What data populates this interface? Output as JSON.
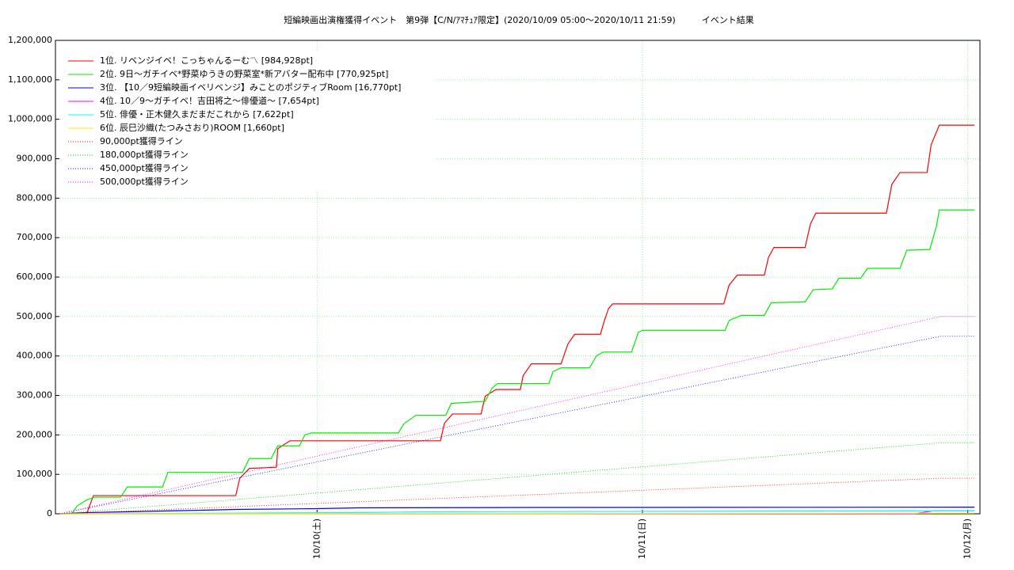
{
  "chart_data": {
    "type": "line",
    "title": "短編映画出演権獲得イベント　第9弾【C/N/ｱﾏﾁｭｱ限定】(2020/10/09 05:00〜2020/10/11 21:59)　　　イベント結果",
    "xlim": [
      -0.3,
      67.9
    ],
    "xticks": [
      {
        "value": 19,
        "label": "10/10(土)"
      },
      {
        "value": 43,
        "label": "10/11(日)"
      },
      {
        "value": 67,
        "label": "10/12(月)"
      }
    ],
    "ylim": [
      0,
      1200000
    ],
    "yticks": [
      0,
      {
        "value": 100000,
        "label": "100,000"
      },
      {
        "value": 200000,
        "label": "200,000"
      },
      {
        "value": 300000,
        "label": "300,000"
      },
      {
        "value": 400000,
        "label": "400,000"
      },
      {
        "value": 500000,
        "label": "500,000"
      },
      {
        "value": 600000,
        "label": "600,000"
      },
      {
        "value": 700000,
        "label": "700,000"
      },
      {
        "value": 800000,
        "label": "800,000"
      },
      {
        "value": 900000,
        "label": "900,000"
      },
      {
        "value": 1000000,
        "label": "1,000,000"
      },
      {
        "value": 1100000,
        "label": "1,100,000"
      },
      {
        "value": 1200000,
        "label": "1,200,000"
      }
    ],
    "grid": true,
    "legend": "upper left",
    "series": [
      {
        "name": "1位. リベンジイベ！こっちゃんるーむ〽 [984,928pt]",
        "color": "#ff0000",
        "line_style": "solid",
        "x": [
          2.0,
          2.5,
          13.0,
          13.3,
          14.0,
          16.0,
          16.1,
          17.0,
          28.1,
          28.4,
          29.0,
          31.1,
          31.4,
          32.2,
          34.0,
          34.2,
          34.8,
          37.0,
          37.5,
          38.0,
          39.9,
          40.2,
          40.5,
          40.8,
          49.0,
          49.4,
          50.0,
          52.0,
          52.3,
          52.7,
          55.0,
          55.4,
          55.8,
          61.0,
          61.4,
          62.0,
          64.0,
          64.3,
          64.9,
          67.5
        ],
        "values": [
          0,
          46000,
          46000,
          90000,
          115000,
          118000,
          165000,
          185000,
          185000,
          230000,
          253000,
          253000,
          298000,
          315000,
          315000,
          350000,
          380000,
          380000,
          430000,
          455000,
          455000,
          490000,
          520000,
          532000,
          532000,
          580000,
          605000,
          605000,
          650000,
          675000,
          675000,
          735000,
          762000,
          762000,
          835000,
          865000,
          865000,
          935000,
          985000,
          985000
        ]
      },
      {
        "name": "2位. 9日〜ガチイベ*野菜ゆうきの野菜室*新アバター配布中 [770,925pt]",
        "color": "#00ee00",
        "line_style": "solid",
        "x": [
          0.9,
          1.3,
          2.0,
          2.6,
          4.5,
          5.0,
          7.6,
          8.0,
          13.5,
          14.0,
          15.6,
          16.1,
          17.7,
          18.1,
          18.6,
          25.0,
          25.4,
          26.3,
          28.5,
          28.9,
          31.4,
          31.9,
          32.3,
          36.1,
          36.4,
          37.0,
          39.1,
          39.6,
          40.1,
          42.2,
          42.7,
          43.0,
          49.1,
          49.4,
          50.3,
          52.0,
          52.5,
          55.0,
          55.6,
          57.0,
          57.5,
          59.1,
          59.6,
          62.0,
          62.5,
          64.2,
          64.7,
          64.9,
          67.5
        ],
        "values": [
          0,
          20000,
          35000,
          42000,
          42000,
          68000,
          68000,
          105000,
          105000,
          140000,
          140000,
          172000,
          172000,
          200000,
          205000,
          205000,
          228000,
          250000,
          250000,
          280000,
          285000,
          318000,
          330000,
          330000,
          360000,
          370000,
          370000,
          400000,
          410000,
          410000,
          460000,
          465000,
          465000,
          490000,
          503000,
          503000,
          535000,
          537000,
          568000,
          570000,
          597000,
          597000,
          622000,
          622000,
          668000,
          670000,
          730000,
          770000,
          770000
        ]
      },
      {
        "name": "3位. 【10／9短編映画イベリベンジ】みことのポジティブRoom [16,770pt]",
        "color": "#0000ff",
        "line_style": "solid",
        "x": [
          0,
          2,
          5,
          9,
          13,
          19,
          22,
          35,
          67.5
        ],
        "values": [
          0,
          3000,
          5000,
          8000,
          11000,
          13000,
          15000,
          16000,
          16770
        ]
      },
      {
        "name": "4位. 10／9〜ガチイベ！吉田将之〜俳優道〜 [7,654pt]",
        "color": "#ff00ff",
        "line_style": "solid",
        "x": [
          0,
          63,
          64.5,
          67.5
        ],
        "values": [
          0,
          0,
          7654,
          7654
        ]
      },
      {
        "name": "5位. 俳優・正木健久まだまだこれから [7,622pt]",
        "color": "#00ffff",
        "line_style": "solid",
        "x": [
          0,
          22,
          27,
          50,
          67.5
        ],
        "values": [
          0,
          3000,
          5000,
          6500,
          7622
        ]
      },
      {
        "name": "6位. 辰巳沙織(たつみさおり)ROOM [1,660pt]",
        "color": "#ffee00",
        "line_style": "solid",
        "x": [
          0,
          37,
          67.5
        ],
        "values": [
          0,
          500,
          1660
        ]
      },
      {
        "name": "90,000pt獲得ライン",
        "color": "#ff0000",
        "line_style": "dotted",
        "x": [
          0,
          65,
          67.5
        ],
        "values": [
          0,
          90000,
          90000
        ]
      },
      {
        "name": "180,000pt獲得ライン",
        "color": "#00cc00",
        "line_style": "dotted",
        "x": [
          0,
          65,
          67.5
        ],
        "values": [
          0,
          180000,
          180000
        ]
      },
      {
        "name": "450,000pt獲得ライン",
        "color": "#0000ff",
        "line_style": "dotted",
        "x": [
          0,
          65,
          67.5
        ],
        "values": [
          0,
          450000,
          450000
        ]
      },
      {
        "name": "500,000pt獲得ライン",
        "color": "#ff00ff",
        "line_style": "dotted",
        "x": [
          0,
          65,
          67.5
        ],
        "values": [
          0,
          500000,
          500000
        ]
      }
    ]
  }
}
